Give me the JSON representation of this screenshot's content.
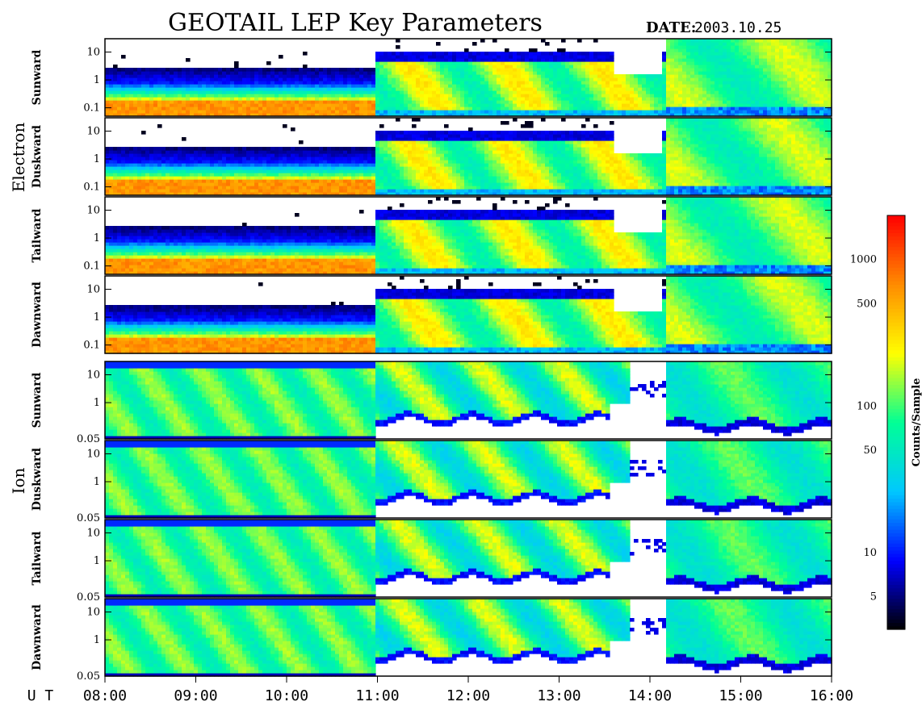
{
  "header": {
    "title": "GEOTAIL LEP Key Parameters",
    "date_label": "DATE:",
    "date_value": "2003.10.25"
  },
  "chart_data": {
    "type": "heatmap",
    "xlabel": "U T",
    "x_ticks": [
      "08:00",
      "09:00",
      "10:00",
      "11:00",
      "12:00",
      "13:00",
      "14:00",
      "15:00",
      "16:00"
    ],
    "xlim": [
      "08:00",
      "16:00"
    ],
    "groups": [
      {
        "name": "Electron",
        "ylim": [
          0.05,
          30
        ],
        "y_scale": "log",
        "y_ticks": [
          "0.1",
          "1",
          "10"
        ],
        "panels": [
          "Sunward",
          "Duskward",
          "Tailward",
          "Dawnward"
        ]
      },
      {
        "name": "Ion",
        "ylim": [
          0.05,
          30
        ],
        "y_scale": "log",
        "y_ticks": [
          "0.05",
          "1",
          "10"
        ],
        "panels": [
          "Sunward",
          "Duskward",
          "Tailward",
          "Dawnward"
        ]
      }
    ],
    "colorbar": {
      "label": "Counts/Sample",
      "scale": "log",
      "range": [
        3,
        2000
      ],
      "ticks": [
        "5",
        "10",
        "50",
        "100",
        "500",
        "1000"
      ]
    },
    "colormap": [
      "#000000",
      "#0000ff",
      "#00c8ff",
      "#00ff96",
      "#ffff00",
      "#ff8c00",
      "#ff0000"
    ]
  }
}
